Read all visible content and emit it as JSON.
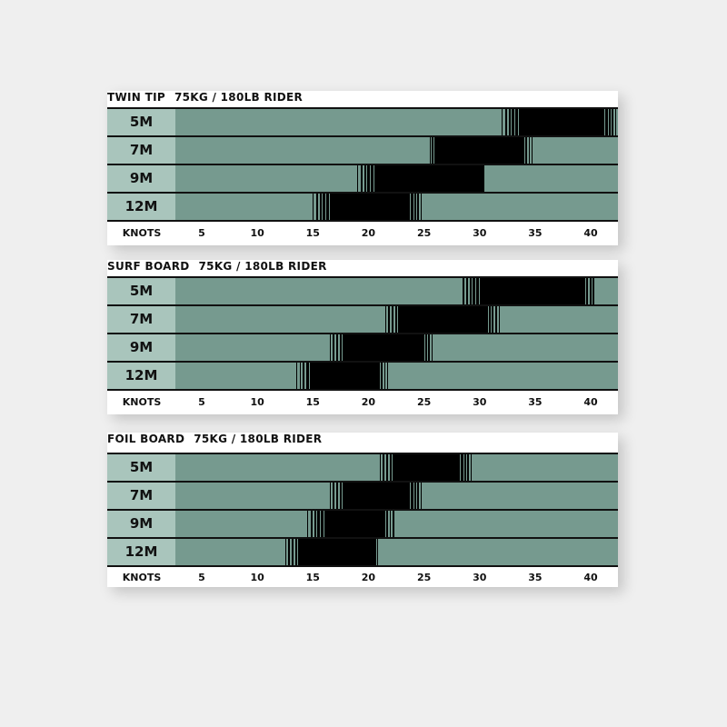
{
  "colors": {
    "label_bg": "#a9c5bc",
    "bar": "#769a8f",
    "range": "#000000"
  },
  "chart_data": [
    {
      "type": "bar",
      "title": "TWIN TIP",
      "subtitle": "75KG / 180LB RIDER",
      "xlabel": "KNOTS",
      "xticks": [
        5,
        10,
        15,
        20,
        25,
        30,
        35,
        40
      ],
      "xlim": [
        2.8,
        42.5
      ],
      "categories": [
        "5M",
        "7M",
        "9M",
        "12M"
      ],
      "ranges": [
        {
          "min": 32,
          "full_from": 33.5,
          "full_to": 41,
          "max": 42.5
        },
        {
          "min": 25.5,
          "full_from": 26.5,
          "full_to": 33.5,
          "max": 35
        },
        {
          "min": 19,
          "full_from": 20.5,
          "full_to": 29.5,
          "max": 30.5
        },
        {
          "min": 15,
          "full_from": 16.5,
          "full_to": 23.5,
          "max": 25
        }
      ]
    },
    {
      "type": "bar",
      "title": "SURF BOARD",
      "subtitle": "75KG / 180LB RIDER",
      "xlabel": "KNOTS",
      "xticks": [
        5,
        10,
        15,
        20,
        25,
        30,
        35,
        40
      ],
      "xlim": [
        2.8,
        42.5
      ],
      "categories": [
        "5M",
        "7M",
        "9M",
        "12M"
      ],
      "ranges": [
        {
          "min": 28.5,
          "full_from": 30,
          "full_to": 39,
          "max": 40.5
        },
        {
          "min": 21.5,
          "full_from": 23,
          "full_to": 30.5,
          "max": 32
        },
        {
          "min": 16.5,
          "full_from": 18,
          "full_to": 24.5,
          "max": 26
        },
        {
          "min": 13.5,
          "full_from": 15,
          "full_to": 20.5,
          "max": 22
        }
      ]
    },
    {
      "type": "bar",
      "title": "FOIL BOARD",
      "subtitle": "75KG / 180LB RIDER",
      "xlabel": "KNOTS",
      "xticks": [
        5,
        10,
        15,
        20,
        25,
        30,
        35,
        40
      ],
      "xlim": [
        2.8,
        42.5
      ],
      "categories": [
        "5M",
        "7M",
        "9M",
        "12M"
      ],
      "ranges": [
        {
          "min": 21,
          "full_from": 22.5,
          "full_to": 28,
          "max": 29.5
        },
        {
          "min": 16.5,
          "full_from": 18,
          "full_to": 23.5,
          "max": 25
        },
        {
          "min": 14.5,
          "full_from": 16,
          "full_to": 21,
          "max": 22.5
        },
        {
          "min": 12.5,
          "full_from": 14,
          "full_to": 20,
          "max": 21
        }
      ]
    }
  ]
}
